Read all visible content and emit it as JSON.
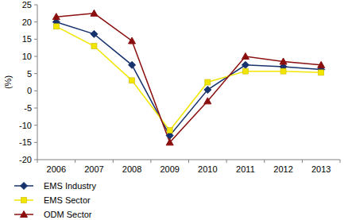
{
  "chart_data": {
    "type": "line",
    "y_label": "(%)",
    "categories": [
      "2006",
      "2007",
      "2008",
      "2009",
      "2010",
      "2011",
      "2012",
      "2013"
    ],
    "series": [
      {
        "name": "EMS Industry",
        "color": "#17336e",
        "marker": "diamond",
        "values": [
          20,
          16.5,
          7.5,
          -13,
          0.3,
          7.5,
          7,
          6.2
        ]
      },
      {
        "name": "EMS Sector",
        "color": "#f2e600",
        "marker": "square",
        "values": [
          18.7,
          13,
          3,
          -11.5,
          2.5,
          5.7,
          5.7,
          5.3
        ]
      },
      {
        "name": "ODM Sector",
        "color": "#8b0f0f",
        "marker": "triangle",
        "values": [
          21.5,
          22.5,
          14.5,
          -15,
          -3,
          10,
          8.5,
          7.5
        ]
      }
    ],
    "ylim": [
      -20,
      25
    ],
    "yticks": [
      -20,
      -15,
      -10,
      -5,
      0,
      5,
      10,
      15,
      20,
      25
    ],
    "grid": false,
    "legend": "bottom-left"
  }
}
